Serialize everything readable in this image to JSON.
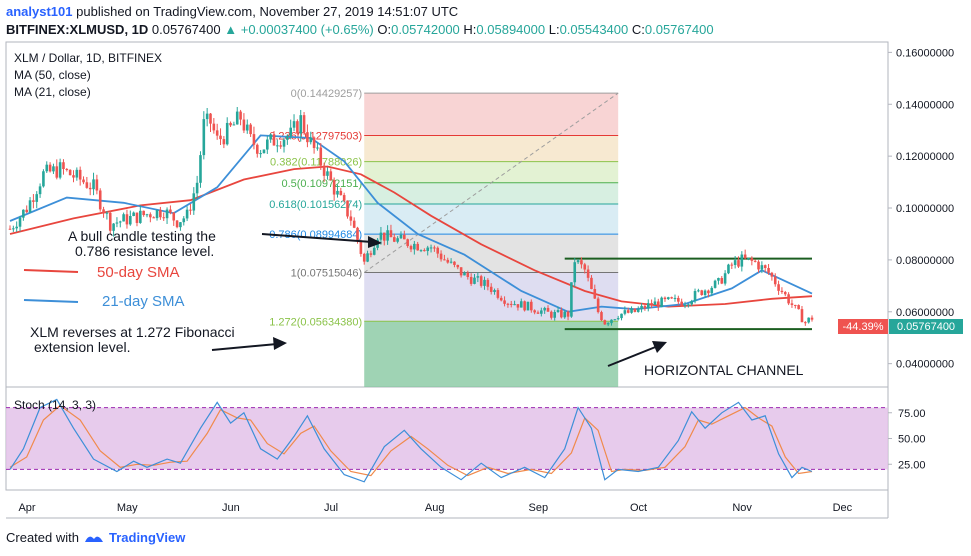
{
  "header": {
    "author": "analyst101",
    "published_text": "published on TradingView.com, November 27, 2019 14:51:07 UTC",
    "symbol": "BITFINEX:XLMUSD, 1D",
    "last": "0.05767400",
    "change_arrow": "▲",
    "change": "+0.00037400 (+0.65%)",
    "o_label": "O:",
    "o": "0.05742000",
    "h_label": "H:",
    "h": "0.05894000",
    "l_label": "L:",
    "l": "0.05543400",
    "c_label": "C:",
    "c": "0.05767400"
  },
  "legend": {
    "title": "XLM / Dollar, 1D, BITFINEX",
    "ma50": "MA (50, close)",
    "ma21": "MA (21, close)",
    "stoch": "Stoch (14, 3, 3)"
  },
  "annotations": {
    "bull_1": "A bull candle testing  the",
    "bull_2": "0.786 resistance level.",
    "sma50": "50-day SMA",
    "sma21": "21-day SMA",
    "rev_1": "XLM reverses at 1.272 Fibonacci",
    "rev_2": "extension level.",
    "channel": "HORIZONTAL CHANNEL"
  },
  "badges": {
    "change_pct": "-44.39%",
    "price": "0.05767400"
  },
  "colors": {
    "up": "#26a69a",
    "down": "#ef5350",
    "ma50": "#e8463e",
    "ma21": "#3d8fd8",
    "stoch_k": "#3d8fd8",
    "stoch_d": "#f08a4b",
    "stoch_band": "#e1bee7",
    "channel": "#1b5e20",
    "price_badge": "#26a69a"
  },
  "footer": {
    "created_with": "Created with",
    "brand": "TradingView"
  },
  "chart_data": {
    "type": "candlestick",
    "x_axis": {
      "labels": [
        "Apr",
        "May",
        "Jun",
        "Jul",
        "Aug",
        "Sep",
        "Oct",
        "Nov",
        "Dec"
      ],
      "start": "2019-04-01",
      "end": "2019-11-27"
    },
    "y_axis": {
      "range": [
        0.031,
        0.164
      ],
      "ticks": [
        "0.16000000",
        "0.14000000",
        "0.12000000",
        "0.10000000",
        "0.08000000",
        "0.06000000",
        "0.04000000"
      ],
      "tick_values": [
        0.16,
        0.14,
        0.12,
        0.1,
        0.08,
        0.06,
        0.04
      ]
    },
    "fibonacci": {
      "from": "2019-07-16",
      "to": "2019-09-30",
      "levels": [
        {
          "label": "0(0.14429257)",
          "ratio": 0,
          "price": 0.14429257
        },
        {
          "label": "0.236(0.12797503)",
          "ratio": 0.236,
          "price": 0.12797503
        },
        {
          "label": "0.382(0.11788026)",
          "ratio": 0.382,
          "price": 0.11788026
        },
        {
          "label": "0.5(0.10972151)",
          "ratio": 0.5,
          "price": 0.10972151
        },
        {
          "label": "0.618(0.10156274)",
          "ratio": 0.618,
          "price": 0.10156274
        },
        {
          "label": "0.786(0.08994684)",
          "ratio": 0.786,
          "price": 0.08994684
        },
        {
          "label": "1(0.07515046)",
          "ratio": 1,
          "price": 0.07515046
        },
        {
          "label": "1.272(0.05634380)",
          "ratio": 1.272,
          "price": 0.0563438
        }
      ]
    },
    "horizontal_channel": {
      "from": "2019-09-14",
      "to": "2019-11-27",
      "upper": 0.0805,
      "lower": 0.0533
    },
    "close_series": [
      [
        "2019-04-01",
        0.092
      ],
      [
        "2019-04-06",
        0.1
      ],
      [
        "2019-04-11",
        0.113
      ],
      [
        "2019-04-16",
        0.115
      ],
      [
        "2019-04-22",
        0.111
      ],
      [
        "2019-04-26",
        0.108
      ],
      [
        "2019-05-01",
        0.094
      ],
      [
        "2019-05-07",
        0.096
      ],
      [
        "2019-05-13",
        0.098
      ],
      [
        "2019-05-17",
        0.099
      ],
      [
        "2019-05-21",
        0.095
      ],
      [
        "2019-05-24",
        0.097
      ],
      [
        "2019-05-27",
        0.11
      ],
      [
        "2019-05-29",
        0.132
      ],
      [
        "2019-05-31",
        0.133
      ],
      [
        "2019-06-02",
        0.126
      ],
      [
        "2019-06-05",
        0.129
      ],
      [
        "2019-06-09",
        0.135
      ],
      [
        "2019-06-12",
        0.126
      ],
      [
        "2019-06-15",
        0.123
      ],
      [
        "2019-06-20",
        0.127
      ],
      [
        "2019-06-24",
        0.128
      ],
      [
        "2019-06-27",
        0.134
      ],
      [
        "2019-06-30",
        0.125
      ],
      [
        "2019-07-04",
        0.115
      ],
      [
        "2019-07-08",
        0.105
      ],
      [
        "2019-07-12",
        0.096
      ],
      [
        "2019-07-16",
        0.079
      ],
      [
        "2019-07-20",
        0.09
      ],
      [
        "2019-07-25",
        0.088
      ],
      [
        "2019-07-31",
        0.086
      ],
      [
        "2019-08-05",
        0.085
      ],
      [
        "2019-08-10",
        0.079
      ],
      [
        "2019-08-15",
        0.074
      ],
      [
        "2019-08-22",
        0.07
      ],
      [
        "2019-08-28",
        0.064
      ],
      [
        "2019-09-03",
        0.062
      ],
      [
        "2019-09-10",
        0.059
      ],
      [
        "2019-09-15",
        0.059
      ],
      [
        "2019-09-17",
        0.08
      ],
      [
        "2019-09-20",
        0.076
      ],
      [
        "2019-09-24",
        0.06
      ],
      [
        "2019-09-26",
        0.056
      ],
      [
        "2019-09-30",
        0.059
      ],
      [
        "2019-10-05",
        0.06
      ],
      [
        "2019-10-10",
        0.063
      ],
      [
        "2019-10-15",
        0.064
      ],
      [
        "2019-10-20",
        0.064
      ],
      [
        "2019-10-25",
        0.068
      ],
      [
        "2019-10-30",
        0.071
      ],
      [
        "2019-11-03",
        0.078
      ],
      [
        "2019-11-06",
        0.08
      ],
      [
        "2019-11-10",
        0.079
      ],
      [
        "2019-11-14",
        0.075
      ],
      [
        "2019-11-18",
        0.068
      ],
      [
        "2019-11-22",
        0.061
      ],
      [
        "2019-11-25",
        0.056
      ],
      [
        "2019-11-27",
        0.0577
      ]
    ],
    "ma50_series": [
      [
        "2019-04-01",
        0.09
      ],
      [
        "2019-04-20",
        0.096
      ],
      [
        "2019-05-10",
        0.101
      ],
      [
        "2019-05-25",
        0.103
      ],
      [
        "2019-06-10",
        0.111
      ],
      [
        "2019-06-25",
        0.115
      ],
      [
        "2019-07-05",
        0.116
      ],
      [
        "2019-07-15",
        0.113
      ],
      [
        "2019-07-25",
        0.106
      ],
      [
        "2019-08-05",
        0.097
      ],
      [
        "2019-08-20",
        0.086
      ],
      [
        "2019-09-05",
        0.076
      ],
      [
        "2019-09-20",
        0.068
      ],
      [
        "2019-10-01",
        0.064
      ],
      [
        "2019-10-15",
        0.062
      ],
      [
        "2019-11-01",
        0.063
      ],
      [
        "2019-11-15",
        0.065
      ],
      [
        "2019-11-27",
        0.066
      ]
    ],
    "ma21_series": [
      [
        "2019-04-01",
        0.095
      ],
      [
        "2019-04-18",
        0.104
      ],
      [
        "2019-05-05",
        0.102
      ],
      [
        "2019-05-20",
        0.098
      ],
      [
        "2019-06-02",
        0.108
      ],
      [
        "2019-06-15",
        0.128
      ],
      [
        "2019-06-30",
        0.127
      ],
      [
        "2019-07-10",
        0.118
      ],
      [
        "2019-07-20",
        0.102
      ],
      [
        "2019-08-01",
        0.09
      ],
      [
        "2019-08-15",
        0.082
      ],
      [
        "2019-09-01",
        0.068
      ],
      [
        "2019-09-15",
        0.06
      ],
      [
        "2019-09-25",
        0.062
      ],
      [
        "2019-10-05",
        0.061
      ],
      [
        "2019-10-20",
        0.063
      ],
      [
        "2019-11-03",
        0.069
      ],
      [
        "2019-11-12",
        0.076
      ],
      [
        "2019-11-22",
        0.07
      ],
      [
        "2019-11-27",
        0.067
      ]
    ],
    "stochastic": {
      "range": [
        0,
        100
      ],
      "ticks": [
        "75.00",
        "50.00",
        "25.00"
      ],
      "tick_values": [
        75,
        50,
        25
      ],
      "overbought": 80,
      "oversold": 20,
      "k_series": [
        [
          "2019-04-01",
          20
        ],
        [
          "2019-04-05",
          40
        ],
        [
          "2019-04-10",
          80
        ],
        [
          "2019-04-15",
          88
        ],
        [
          "2019-04-20",
          60
        ],
        [
          "2019-04-26",
          30
        ],
        [
          "2019-05-03",
          18
        ],
        [
          "2019-05-08",
          28
        ],
        [
          "2019-05-12",
          22
        ],
        [
          "2019-05-18",
          30
        ],
        [
          "2019-05-22",
          26
        ],
        [
          "2019-05-28",
          60
        ],
        [
          "2019-06-02",
          85
        ],
        [
          "2019-06-06",
          65
        ],
        [
          "2019-06-10",
          75
        ],
        [
          "2019-06-15",
          40
        ],
        [
          "2019-06-20",
          30
        ],
        [
          "2019-06-25",
          52
        ],
        [
          "2019-06-29",
          72
        ],
        [
          "2019-07-04",
          40
        ],
        [
          "2019-07-10",
          15
        ],
        [
          "2019-07-16",
          8
        ],
        [
          "2019-07-22",
          42
        ],
        [
          "2019-07-28",
          58
        ],
        [
          "2019-08-02",
          40
        ],
        [
          "2019-08-08",
          22
        ],
        [
          "2019-08-14",
          10
        ],
        [
          "2019-08-20",
          26
        ],
        [
          "2019-08-26",
          12
        ],
        [
          "2019-09-02",
          22
        ],
        [
          "2019-09-08",
          12
        ],
        [
          "2019-09-14",
          40
        ],
        [
          "2019-09-18",
          80
        ],
        [
          "2019-09-22",
          60
        ],
        [
          "2019-09-26",
          10
        ],
        [
          "2019-09-30",
          20
        ],
        [
          "2019-10-06",
          18
        ],
        [
          "2019-10-12",
          22
        ],
        [
          "2019-10-18",
          48
        ],
        [
          "2019-10-22",
          76
        ],
        [
          "2019-10-26",
          60
        ],
        [
          "2019-10-31",
          75
        ],
        [
          "2019-11-05",
          85
        ],
        [
          "2019-11-09",
          68
        ],
        [
          "2019-11-13",
          72
        ],
        [
          "2019-11-17",
          35
        ],
        [
          "2019-11-21",
          12
        ],
        [
          "2019-11-24",
          22
        ],
        [
          "2019-11-27",
          18
        ]
      ],
      "d_series": [
        [
          "2019-04-01",
          22
        ],
        [
          "2019-04-06",
          32
        ],
        [
          "2019-04-11",
          68
        ],
        [
          "2019-04-16",
          82
        ],
        [
          "2019-04-22",
          68
        ],
        [
          "2019-04-28",
          38
        ],
        [
          "2019-05-04",
          22
        ],
        [
          "2019-05-09",
          25
        ],
        [
          "2019-05-14",
          24
        ],
        [
          "2019-05-19",
          27
        ],
        [
          "2019-05-24",
          28
        ],
        [
          "2019-05-30",
          55
        ],
        [
          "2019-06-03",
          78
        ],
        [
          "2019-06-08",
          70
        ],
        [
          "2019-06-12",
          68
        ],
        [
          "2019-06-17",
          45
        ],
        [
          "2019-06-22",
          35
        ],
        [
          "2019-06-27",
          55
        ],
        [
          "2019-07-01",
          62
        ],
        [
          "2019-07-06",
          38
        ],
        [
          "2019-07-12",
          18
        ],
        [
          "2019-07-18",
          14
        ],
        [
          "2019-07-24",
          38
        ],
        [
          "2019-07-30",
          52
        ],
        [
          "2019-08-04",
          40
        ],
        [
          "2019-08-10",
          24
        ],
        [
          "2019-08-16",
          14
        ],
        [
          "2019-08-22",
          22
        ],
        [
          "2019-08-28",
          16
        ],
        [
          "2019-09-04",
          20
        ],
        [
          "2019-09-10",
          16
        ],
        [
          "2019-09-16",
          36
        ],
        [
          "2019-09-20",
          70
        ],
        [
          "2019-09-24",
          58
        ],
        [
          "2019-09-28",
          18
        ],
        [
          "2019-10-02",
          20
        ],
        [
          "2019-10-08",
          19
        ],
        [
          "2019-10-14",
          22
        ],
        [
          "2019-10-20",
          42
        ],
        [
          "2019-10-24",
          68
        ],
        [
          "2019-10-28",
          64
        ],
        [
          "2019-11-02",
          72
        ],
        [
          "2019-11-07",
          80
        ],
        [
          "2019-11-11",
          70
        ],
        [
          "2019-11-15",
          62
        ],
        [
          "2019-11-19",
          32
        ],
        [
          "2019-11-23",
          16
        ],
        [
          "2019-11-27",
          18
        ]
      ]
    }
  }
}
